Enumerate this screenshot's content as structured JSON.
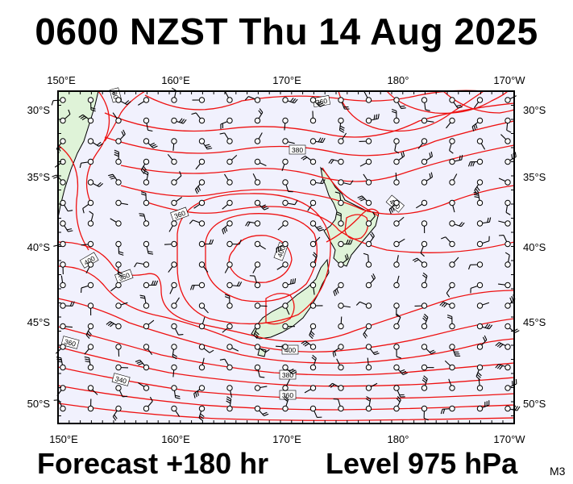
{
  "title": "0600 NZST Thu 14 Aug 2025",
  "forecast_label": "Forecast +180 hr",
  "level_label": "Level 975 hPa",
  "model_code": "M3",
  "axes": {
    "x_ticks": [
      "150°E",
      "160°E",
      "170°E",
      "180°",
      "170°W"
    ],
    "y_ticks": [
      "30°S",
      "35°S",
      "40°S",
      "45°S",
      "50°S"
    ]
  },
  "contour_labels": [
    "80",
    "360",
    "380",
    "400",
    "360",
    "400",
    "400",
    "360",
    "360",
    "340",
    "400",
    "380",
    "360"
  ],
  "colors": {
    "background": "#ffffff",
    "ocean": "#f1f1fd",
    "land": "#dff3d8",
    "contour": "#ee1111",
    "barb": "#000000"
  }
}
